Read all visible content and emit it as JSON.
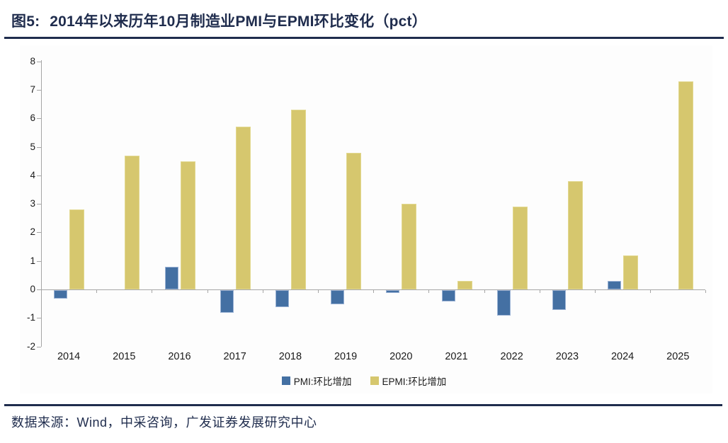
{
  "figure": {
    "label": "图5:",
    "title": "2014年以来历年10月制造业PMI与EPMI环比变化（pct）",
    "source_note": "数据来源：Wind，中采咨询，广发证券发展研究中心"
  },
  "colors": {
    "navy": "#1f2c4d",
    "pmi_bar": "#4470a3",
    "pmi_bar_border": "#9db4d6",
    "epmi_bar": "#d6c76e",
    "epmi_bar_border": "#e2d88f",
    "axis": "#a6a6a6",
    "tick_text": "#1a1a1a"
  },
  "chart_data": {
    "type": "bar",
    "title": "",
    "xlabel": "",
    "ylabel": "",
    "categories": [
      "2014",
      "2015",
      "2016",
      "2017",
      "2018",
      "2019",
      "2020",
      "2021",
      "2022",
      "2023",
      "2024",
      "2025"
    ],
    "series": [
      {
        "name": "PMI:环比增加",
        "color": "#4470a3",
        "values": [
          -0.3,
          0,
          0.8,
          -0.8,
          -0.6,
          -0.5,
          -0.1,
          -0.4,
          -0.9,
          -0.7,
          0.3,
          null
        ]
      },
      {
        "name": "EPMI:环比增加",
        "color": "#d6c76e",
        "values": [
          2.8,
          4.7,
          4.5,
          5.7,
          6.3,
          4.8,
          3.0,
          0.3,
          2.9,
          3.8,
          1.2,
          7.3
        ]
      }
    ],
    "ylim": [
      -2,
      8
    ],
    "ytick_step": 1,
    "grid": false,
    "legend_position": "bottom"
  }
}
